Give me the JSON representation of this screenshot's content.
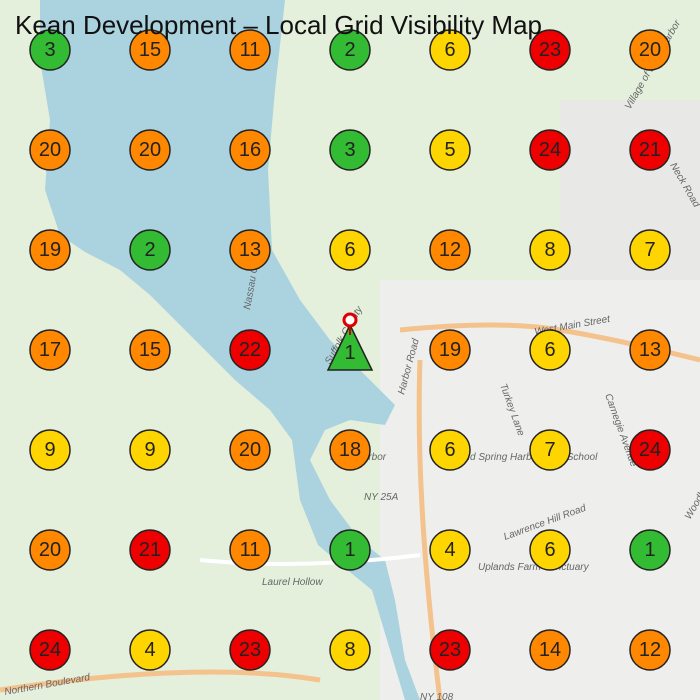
{
  "header": {
    "title": "Kean Development – Local Grid Visibility Map"
  },
  "grid": {
    "rows": [
      [
        3,
        15,
        11,
        2,
        6,
        23,
        20
      ],
      [
        20,
        20,
        16,
        3,
        5,
        24,
        21
      ],
      [
        19,
        2,
        13,
        6,
        12,
        8,
        7
      ],
      [
        17,
        15,
        22,
        {
          "value": 1,
          "shape": "triangle"
        },
        19,
        6,
        13
      ],
      [
        9,
        9,
        20,
        18,
        6,
        7,
        24
      ],
      [
        20,
        21,
        11,
        1,
        4,
        6,
        1
      ],
      [
        24,
        4,
        23,
        8,
        23,
        14,
        12
      ]
    ],
    "color_scale": [
      {
        "max": 3,
        "color": "#33bb33"
      },
      {
        "max": 10,
        "color": "#ffd500"
      },
      {
        "max": 20,
        "color": "#ff8800"
      },
      {
        "max": 100,
        "color": "#ee0000"
      }
    ]
  },
  "map_labels": [
    "Suffolk County",
    "Nassau County",
    "Laurel Hollow",
    "NY 25A",
    "NY 108",
    "Harbor Road",
    "Lawrence Hill Road",
    "Turkey Lane",
    "West Main Street",
    "Carnegie Avenue",
    "Neck Road",
    "Woodbury Road",
    "Northern Boulevard",
    "Cold Spring Harbor High School",
    "Uplands Farm Sanctuary",
    "Inner Harbor",
    "Village of Lloyd Harbor"
  ]
}
